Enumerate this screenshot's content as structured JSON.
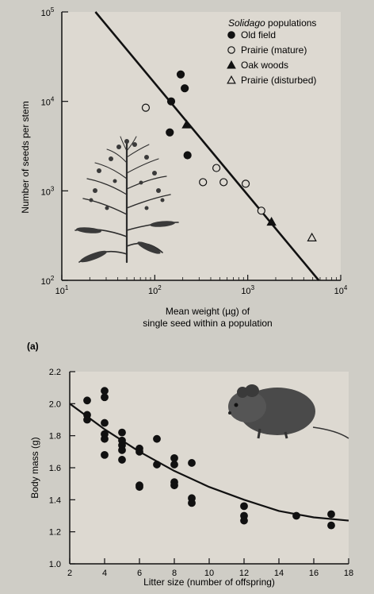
{
  "chart_data": [
    {
      "type": "scatter",
      "title": "",
      "xlabel": "Mean weight (µg) of single seed within a population",
      "xlabel_lines": [
        "Mean weight (µg) of",
        "single seed within a population"
      ],
      "ylabel": "Number of seeds per stem",
      "x_scale": "log",
      "y_scale": "log",
      "xlim": [
        10,
        10000
      ],
      "ylim": [
        100,
        100000
      ],
      "x_ticks": [
        10,
        100,
        1000,
        10000
      ],
      "y_ticks": [
        100,
        1000,
        10000,
        100000
      ],
      "legend_title": "Solidago populations",
      "legend_position": "top-right",
      "grid": false,
      "series": [
        {
          "name": "Old field",
          "marker": "filled-circle",
          "points": [
            [
              190,
              20000
            ],
            [
              210,
              14000
            ],
            [
              150,
              10000
            ],
            [
              145,
              4500
            ],
            [
              225,
              2500
            ]
          ]
        },
        {
          "name": "Prairie (mature)",
          "marker": "open-circle",
          "points": [
            [
              80,
              8500
            ],
            [
              330,
              1250
            ],
            [
              460,
              1800
            ],
            [
              550,
              1250
            ],
            [
              950,
              1200
            ],
            [
              1400,
              600
            ]
          ]
        },
        {
          "name": "Oak woods",
          "marker": "filled-triangle",
          "points": [
            [
              220,
              5500
            ],
            [
              1800,
              450
            ]
          ]
        },
        {
          "name": "Prairie (disturbed)",
          "marker": "open-triangle",
          "points": [
            [
              4900,
              300
            ]
          ]
        }
      ],
      "fit_line": [
        [
          23,
          100000
        ],
        [
          5800,
          100
        ]
      ],
      "illustration": "goldenrod-plant"
    },
    {
      "type": "scatter",
      "title": "",
      "xlabel": "Litter size (number of offspring)",
      "ylabel": "Body mass (g)",
      "xlim": [
        2,
        18
      ],
      "ylim": [
        1.0,
        2.2
      ],
      "x_ticks": [
        2,
        4,
        6,
        8,
        10,
        12,
        14,
        16,
        18
      ],
      "y_ticks": [
        1.0,
        1.2,
        1.4,
        1.6,
        1.8,
        2.0,
        2.2
      ],
      "grid": false,
      "series": [
        {
          "name": "",
          "marker": "filled-circle",
          "points": [
            [
              3,
              2.02
            ],
            [
              3,
              1.93
            ],
            [
              3,
              1.9
            ],
            [
              4,
              2.08
            ],
            [
              4,
              2.04
            ],
            [
              4,
              1.88
            ],
            [
              4,
              1.81
            ],
            [
              4,
              1.78
            ],
            [
              4,
              1.68
            ],
            [
              5,
              1.82
            ],
            [
              5,
              1.77
            ],
            [
              5,
              1.74
            ],
            [
              5,
              1.71
            ],
            [
              5,
              1.65
            ],
            [
              6,
              1.72
            ],
            [
              6,
              1.7
            ],
            [
              6,
              1.49
            ],
            [
              6,
              1.48
            ],
            [
              7,
              1.78
            ],
            [
              7,
              1.62
            ],
            [
              8,
              1.66
            ],
            [
              8,
              1.62
            ],
            [
              8,
              1.51
            ],
            [
              8,
              1.49
            ],
            [
              9,
              1.63
            ],
            [
              9,
              1.41
            ],
            [
              9,
              1.38
            ],
            [
              12,
              1.36
            ],
            [
              12,
              1.3
            ],
            [
              12,
              1.27
            ],
            [
              15,
              1.3
            ],
            [
              17,
              1.31
            ],
            [
              17,
              1.24
            ]
          ]
        }
      ],
      "fit_curve": [
        [
          2,
          2.0
        ],
        [
          4,
          1.84
        ],
        [
          6,
          1.7
        ],
        [
          8,
          1.58
        ],
        [
          10,
          1.48
        ],
        [
          12,
          1.4
        ],
        [
          14,
          1.33
        ],
        [
          16,
          1.29
        ],
        [
          18,
          1.27
        ]
      ],
      "illustration": "mouse"
    }
  ],
  "panel_label": "(a)"
}
